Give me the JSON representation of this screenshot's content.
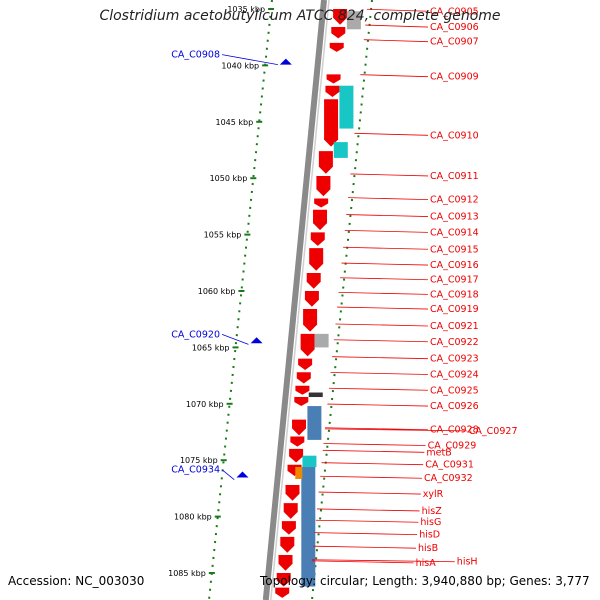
{
  "title": "Clostridium acetobutylicum ATCC 824, complete genome",
  "footer": {
    "accession": "Accession: NC_003030",
    "summary": "Topology: circular; Length: 3,940,880 bp; Genes: 3,777"
  },
  "colors": {
    "forward_gene": "#ee0000",
    "reverse_gene": "#0000dd",
    "teal": "#19c6c6",
    "grey": "#aaaaaa",
    "steelblue": "#4a7fb5",
    "tick": "#1a7a1a",
    "backbone": "#8a8a8a"
  },
  "ticks": [
    {
      "label": "1035 kbp",
      "kbp": 1035
    },
    {
      "label": "1040 kbp",
      "kbp": 1040
    },
    {
      "label": "1045 kbp",
      "kbp": 1045
    },
    {
      "label": "1050 kbp",
      "kbp": 1050
    },
    {
      "label": "1055 kbp",
      "kbp": 1055
    },
    {
      "label": "1060 kbp",
      "kbp": 1060
    },
    {
      "label": "1065 kbp",
      "kbp": 1065
    },
    {
      "label": "1070 kbp",
      "kbp": 1070
    },
    {
      "label": "1075 kbp",
      "kbp": 1075
    },
    {
      "label": "1080 kbp",
      "kbp": 1080
    },
    {
      "label": "1085 kbp",
      "kbp": 1085
    }
  ],
  "left_labels": [
    {
      "name": "CA_C0908",
      "kbp": 1039.4
    },
    {
      "name": "CA_C0920",
      "kbp": 1064.2
    },
    {
      "name": "CA_C0934",
      "kbp": 1076.2
    }
  ],
  "right_labels": [
    {
      "name": "CA_C0905",
      "kbp": 1035.2
    },
    {
      "name": "CA_C0906",
      "kbp": 1036.6
    },
    {
      "name": "CA_C0907",
      "kbp": 1037.9
    },
    {
      "name": "CA_C0909",
      "kbp": 1041.0
    },
    {
      "name": "CA_C0910",
      "kbp": 1046.2
    },
    {
      "name": "CA_C0911",
      "kbp": 1049.8
    },
    {
      "name": "CA_C0912",
      "kbp": 1051.9
    },
    {
      "name": "CA_C0913",
      "kbp": 1053.4
    },
    {
      "name": "CA_C0914",
      "kbp": 1054.8
    },
    {
      "name": "CA_C0915",
      "kbp": 1056.3
    },
    {
      "name": "CA_C0916",
      "kbp": 1057.7
    },
    {
      "name": "CA_C0917",
      "kbp": 1059.0
    },
    {
      "name": "CA_C0918",
      "kbp": 1060.3
    },
    {
      "name": "CA_C0919",
      "kbp": 1061.6
    },
    {
      "name": "CA_C0921",
      "kbp": 1063.1
    },
    {
      "name": "CA_C0922",
      "kbp": 1064.5
    },
    {
      "name": "CA_C0923",
      "kbp": 1066.0
    },
    {
      "name": "CA_C0924",
      "kbp": 1067.4
    },
    {
      "name": "CA_C0925",
      "kbp": 1068.8
    },
    {
      "name": "CA_C0926",
      "kbp": 1070.2
    },
    {
      "name": "CA_C0928",
      "kbp": 1072.3
    },
    {
      "name": "CA_C0927",
      "kbp": 1072.4
    },
    {
      "name": "CA_C0929",
      "kbp": 1073.7
    },
    {
      "name": "metB",
      "kbp": 1074.3
    },
    {
      "name": "CA_C0931",
      "kbp": 1075.4
    },
    {
      "name": "CA_C0932",
      "kbp": 1076.6
    },
    {
      "name": "xylR",
      "kbp": 1078.0
    },
    {
      "name": "hisZ",
      "kbp": 1079.5
    },
    {
      "name": "hisG",
      "kbp": 1080.5
    },
    {
      "name": "hisD",
      "kbp": 1081.6
    },
    {
      "name": "hisB",
      "kbp": 1082.8
    },
    {
      "name": "hisH",
      "kbp": 1084.0
    },
    {
      "name": "hisA",
      "kbp": 1084.1
    }
  ]
}
